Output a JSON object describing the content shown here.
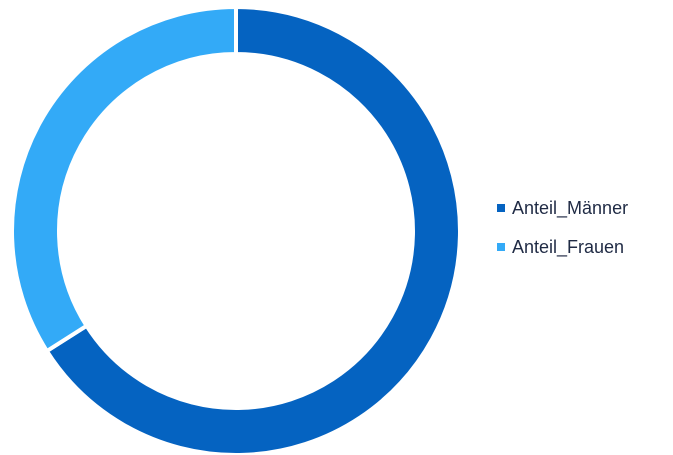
{
  "chart_data": {
    "type": "pie",
    "variant": "donut",
    "categories": [
      "Anteil_Männer",
      "Anteil_Frauen"
    ],
    "values": [
      66,
      34
    ],
    "colors": [
      "#0563c1",
      "#33aaf7"
    ],
    "legend_position": "right"
  }
}
